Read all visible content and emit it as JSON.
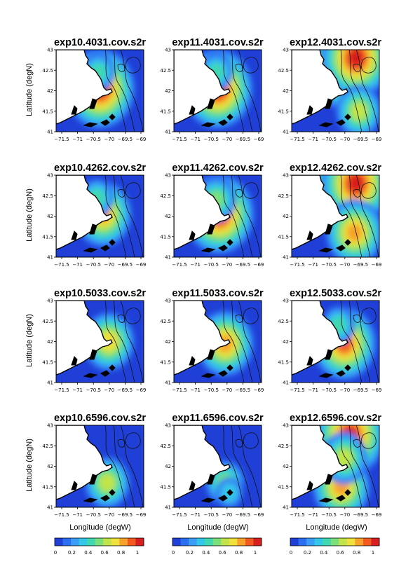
{
  "figure": {
    "ylabel": "Latitude (degN)",
    "xlabel": "Longitude (degW)",
    "x_ticks": [
      "−71.5",
      "−71",
      "−70.5",
      "−70",
      "−69.5",
      "−69"
    ],
    "y_ticks": [
      "43",
      "42.5",
      "42",
      "41.5",
      "41"
    ],
    "colorbar": {
      "ticks": [
        "0",
        "0.2",
        "0.4",
        "0.6",
        "0.8",
        "1"
      ],
      "colors": [
        "#1f3fd6",
        "#2a6ef2",
        "#3a9ef6",
        "#33c8e8",
        "#40d8b0",
        "#7be07a",
        "#c2e44a",
        "#f0e03c",
        "#f6a22c",
        "#f25a22",
        "#d81f1f"
      ]
    },
    "colors": {
      "land": "#ffffff",
      "ocean_base": "#1f3fd6",
      "coast": "#000000",
      "contour": "#111111"
    }
  },
  "chart_data": {
    "type": "heatmap",
    "x_range": [
      -72,
      -69
    ],
    "y_range": [
      41,
      43
    ],
    "value_range": [
      0,
      1
    ],
    "panels": [
      {
        "title": "exp10.4031.cov.s2r",
        "row": 0,
        "col": 0,
        "hotspots": [
          {
            "lon": -70.5,
            "lat": 42.05,
            "value": 0.95
          },
          {
            "lon": -70.55,
            "lat": 42.45,
            "value": 0.35
          }
        ]
      },
      {
        "title": "exp11.4031.cov.s2r",
        "row": 0,
        "col": 1,
        "hotspots": [
          {
            "lon": -70.5,
            "lat": 42.05,
            "value": 0.95
          },
          {
            "lon": -70.55,
            "lat": 42.45,
            "value": 0.4
          }
        ]
      },
      {
        "title": "exp12.4031.cov.s2r",
        "row": 0,
        "col": 2,
        "hotspots": [
          {
            "lon": -70.3,
            "lat": 42.55,
            "value": 1.0
          },
          {
            "lon": -69.8,
            "lat": 42.8,
            "value": 0.95
          },
          {
            "lon": -69.7,
            "lat": 41.5,
            "value": 0.6
          }
        ]
      },
      {
        "title": "exp10.4262.cov.s2r",
        "row": 1,
        "col": 0,
        "hotspots": [
          {
            "lon": -70.4,
            "lat": 42.05,
            "value": 0.75
          },
          {
            "lon": -70.6,
            "lat": 42.45,
            "value": 0.35
          }
        ]
      },
      {
        "title": "exp11.4262.cov.s2r",
        "row": 1,
        "col": 1,
        "hotspots": [
          {
            "lon": -70.45,
            "lat": 42.05,
            "value": 0.95
          },
          {
            "lon": -70.55,
            "lat": 42.4,
            "value": 0.5
          }
        ]
      },
      {
        "title": "exp12.4262.cov.s2r",
        "row": 1,
        "col": 2,
        "hotspots": [
          {
            "lon": -70.3,
            "lat": 42.55,
            "value": 1.0
          },
          {
            "lon": -69.8,
            "lat": 42.8,
            "value": 0.95
          },
          {
            "lon": -69.85,
            "lat": 41.6,
            "value": 0.75
          }
        ]
      },
      {
        "title": "exp10.5033.cov.s2r",
        "row": 2,
        "col": 0,
        "hotspots": [
          {
            "lon": -70.2,
            "lat": 42.0,
            "value": 0.7
          }
        ]
      },
      {
        "title": "exp11.5033.cov.s2r",
        "row": 2,
        "col": 1,
        "hotspots": [
          {
            "lon": -70.25,
            "lat": 41.95,
            "value": 0.8
          }
        ]
      },
      {
        "title": "exp12.5033.cov.s2r",
        "row": 2,
        "col": 2,
        "hotspots": [
          {
            "lon": -70.2,
            "lat": 41.95,
            "value": 0.85
          },
          {
            "lon": -70.4,
            "lat": 42.4,
            "value": 0.4
          }
        ]
      },
      {
        "title": "exp10.6596.cov.s2r",
        "row": 3,
        "col": 0,
        "hotspots": [
          {
            "lon": -70.25,
            "lat": 41.6,
            "value": 0.55
          }
        ]
      },
      {
        "title": "exp11.6596.cov.s2r",
        "row": 3,
        "col": 1,
        "hotspots": [
          {
            "lon": -70.25,
            "lat": 41.6,
            "value": 0.5
          },
          {
            "lon": -70.1,
            "lat": 41.35,
            "value": 0.3
          }
        ]
      },
      {
        "title": "exp12.6596.cov.s2r",
        "row": 3,
        "col": 2,
        "hotspots": [
          {
            "lon": -70.0,
            "lat": 42.75,
            "value": 0.95
          },
          {
            "lon": -70.3,
            "lat": 41.5,
            "value": 0.8
          },
          {
            "lon": -70.2,
            "lat": 42.2,
            "value": 0.55
          }
        ]
      }
    ]
  }
}
